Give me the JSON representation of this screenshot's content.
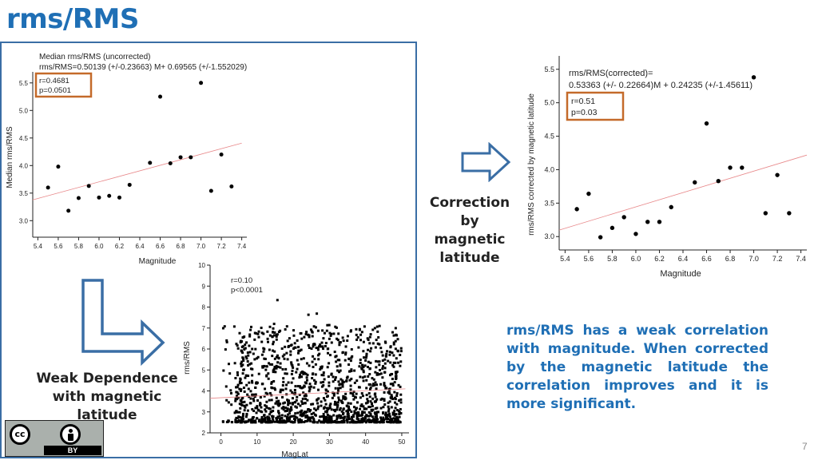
{
  "slide": {
    "title": "rms/RMS",
    "page_number": "7",
    "correction_caption": "Correction by magnetic latitude",
    "weak_caption": "Weak Dependence with magnetic latitude",
    "summary": "rms/RMS has a weak correlation with magnitude. When corrected by the magnetic latitude the correlation improves and it is more significant.",
    "license": {
      "label": "BY",
      "icons": [
        "cc-icon",
        "attribution-icon"
      ]
    },
    "colors": {
      "title": "#1f6fb5",
      "summary": "#1f6fb5",
      "frame": "#3a6ea5",
      "stats_box": "#c46a2a",
      "arrow": "#3a6ea5",
      "fit_line": "#e8888a"
    }
  },
  "chart_data": [
    {
      "type": "scatter",
      "title": "Median rms/RMS (uncorrected)",
      "equation": "rms/RMS=0.50139 (+/-0.23663) M+ 0.69565 (+/-1.552029)",
      "stats": [
        "r=0.4681",
        "p=0.0501"
      ],
      "xlabel": "Magnitude",
      "ylabel": "Median rms/RMS",
      "xlim": [
        5.35,
        7.45
      ],
      "ylim": [
        2.7,
        5.7
      ],
      "xticks": [
        "5.4",
        "5.6",
        "5.8",
        "6.0",
        "6.2",
        "6.4",
        "6.6",
        "6.8",
        "7.0",
        "7.2",
        "7.4"
      ],
      "yticks": [
        "3.0",
        "3.5",
        "4.0",
        "4.5",
        "5.0",
        "5.5"
      ],
      "points": [
        [
          5.5,
          3.6
        ],
        [
          5.6,
          3.98
        ],
        [
          5.7,
          3.18
        ],
        [
          5.8,
          3.41
        ],
        [
          5.9,
          3.63
        ],
        [
          6.0,
          3.42
        ],
        [
          6.1,
          3.45
        ],
        [
          6.2,
          3.42
        ],
        [
          6.3,
          3.65
        ],
        [
          6.5,
          4.05
        ],
        [
          6.6,
          5.25
        ],
        [
          6.7,
          4.04
        ],
        [
          6.8,
          4.15
        ],
        [
          6.9,
          4.15
        ],
        [
          7.0,
          5.5
        ],
        [
          7.1,
          3.54
        ],
        [
          7.2,
          4.2
        ],
        [
          7.3,
          3.62
        ]
      ],
      "fit": {
        "slope": 0.50139,
        "intercept": 0.69565,
        "x_range": [
          5.35,
          7.4
        ]
      }
    },
    {
      "type": "scatter",
      "title": "rms/RMS(corrected)=",
      "equation": "0.53363 (+/- 0.22664)M  + 0.24235 (+/-1.45611)",
      "stats": [
        "r=0.51",
        "p=0.03"
      ],
      "xlabel": "Magnitude",
      "ylabel": "rms/RMS corrected by magnetic latitude",
      "xlim": [
        5.35,
        7.45
      ],
      "ylim": [
        2.8,
        5.7
      ],
      "xticks": [
        "5.4",
        "5.6",
        "5.8",
        "6.0",
        "6.2",
        "6.4",
        "6.6",
        "6.8",
        "7.0",
        "7.2",
        "7.4"
      ],
      "yticks": [
        "3.0",
        "3.5",
        "4.0",
        "4.5",
        "5.0",
        "5.5"
      ],
      "points": [
        [
          5.5,
          3.41
        ],
        [
          5.6,
          3.64
        ],
        [
          5.7,
          2.99
        ],
        [
          5.8,
          3.13
        ],
        [
          5.9,
          3.29
        ],
        [
          6.0,
          3.04
        ],
        [
          6.1,
          3.22
        ],
        [
          6.2,
          3.22
        ],
        [
          6.3,
          3.44
        ],
        [
          6.5,
          3.81
        ],
        [
          6.6,
          4.69
        ],
        [
          6.7,
          3.83
        ],
        [
          6.8,
          4.03
        ],
        [
          6.9,
          4.03
        ],
        [
          7.0,
          5.38
        ],
        [
          7.1,
          3.35
        ],
        [
          7.2,
          3.92
        ],
        [
          7.3,
          3.35
        ]
      ],
      "fit": {
        "slope": 0.53363,
        "intercept": 0.24235,
        "x_range": [
          5.35,
          7.45
        ]
      }
    },
    {
      "type": "scatter",
      "stats": [
        "r=0.10",
        "p<0.0001"
      ],
      "xlabel": "MagLat",
      "ylabel": "rms/RMS",
      "xlim": [
        -3,
        52
      ],
      "ylim": [
        2,
        10
      ],
      "xticks": [
        "0",
        "10",
        "20",
        "30",
        "40",
        "50"
      ],
      "yticks": [
        "2",
        "3",
        "4",
        "5",
        "6",
        "7",
        "8",
        "9",
        "10"
      ],
      "n_points": 1400,
      "x_range": [
        0,
        50
      ],
      "y_floor": 2.5,
      "fit": {
        "y_at_xmin": 3.65,
        "y_at_xmax": 4.1
      }
    }
  ]
}
